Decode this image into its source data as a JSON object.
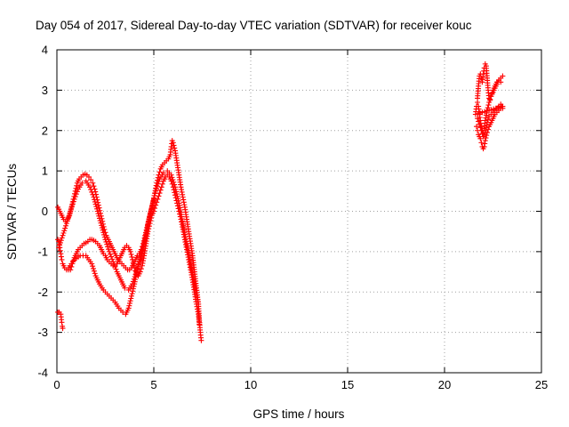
{
  "chart_data": {
    "type": "scatter",
    "title": "Day 054 of 2017, Sidereal Day-to-day VTEC variation (SDTVAR) for receiver kouc",
    "xlabel": "GPS time / hours",
    "ylabel": "SDTVAR / TECUs",
    "xlim": [
      0,
      25
    ],
    "ylim": [
      -4,
      4
    ],
    "xticks": [
      "0",
      "5",
      "10",
      "15",
      "20",
      "25"
    ],
    "yticks": [
      "-4",
      "-3",
      "-2",
      "-1",
      "0",
      "1",
      "2",
      "3",
      "4"
    ],
    "xtick_values": [
      0,
      5,
      10,
      15,
      20,
      25
    ],
    "ytick_values": [
      -4,
      -3,
      -2,
      -1,
      0,
      1,
      2,
      3,
      4
    ],
    "grid": true,
    "marker": "+",
    "color": "#ff0000",
    "series": [
      {
        "points": [
          [
            0.05,
            -2.5
          ],
          [
            0.12,
            -2.5
          ],
          [
            0.2,
            -2.55
          ],
          [
            0.25,
            -2.75
          ],
          [
            0.28,
            -2.85
          ],
          [
            0.3,
            -2.9
          ],
          [
            0.05,
            -0.7
          ],
          [
            0.1,
            -0.75
          ],
          [
            0.15,
            -0.9
          ],
          [
            0.2,
            -1.05
          ],
          [
            0.25,
            -1.2
          ],
          [
            0.3,
            -1.3
          ],
          [
            0.4,
            -1.4
          ],
          [
            0.5,
            -1.45
          ],
          [
            0.6,
            -1.45
          ],
          [
            0.7,
            -1.45
          ],
          [
            0.8,
            -1.3
          ],
          [
            0.9,
            -1.15
          ],
          [
            1.0,
            -1.05
          ],
          [
            1.1,
            -0.95
          ],
          [
            1.2,
            -0.9
          ],
          [
            1.3,
            -0.85
          ],
          [
            1.4,
            -0.8
          ],
          [
            1.5,
            -0.78
          ],
          [
            1.6,
            -0.75
          ],
          [
            1.7,
            -0.7
          ],
          [
            1.8,
            -0.7
          ],
          [
            1.9,
            -0.72
          ],
          [
            2.0,
            -0.75
          ],
          [
            2.1,
            -0.8
          ],
          [
            2.2,
            -0.85
          ],
          [
            2.3,
            -0.95
          ],
          [
            2.4,
            -1.05
          ],
          [
            2.5,
            -1.1
          ],
          [
            2.6,
            -1.2
          ],
          [
            2.7,
            -1.25
          ],
          [
            2.8,
            -1.3
          ],
          [
            2.9,
            -1.35
          ],
          [
            3.0,
            -1.35
          ],
          [
            3.1,
            -1.3
          ],
          [
            3.2,
            -1.2
          ],
          [
            3.3,
            -1.1
          ],
          [
            3.4,
            -1.0
          ],
          [
            3.5,
            -0.9
          ],
          [
            3.6,
            -0.85
          ],
          [
            3.7,
            -0.9
          ],
          [
            3.8,
            -1.0
          ],
          [
            3.9,
            -1.2
          ],
          [
            4.0,
            -1.4
          ],
          [
            4.1,
            -1.55
          ],
          [
            4.2,
            -1.6
          ],
          [
            4.3,
            -1.5
          ],
          [
            4.4,
            -1.35
          ],
          [
            4.5,
            -1.1
          ],
          [
            4.6,
            -0.8
          ],
          [
            4.7,
            -0.5
          ],
          [
            4.8,
            -0.3
          ],
          [
            4.9,
            -0.1
          ],
          [
            5.0,
            0.0
          ],
          [
            5.1,
            0.15
          ],
          [
            5.2,
            0.3
          ],
          [
            5.3,
            0.45
          ],
          [
            5.4,
            0.6
          ],
          [
            5.5,
            0.75
          ],
          [
            5.6,
            0.85
          ],
          [
            5.7,
            0.9
          ],
          [
            5.8,
            0.85
          ],
          [
            5.9,
            0.75
          ],
          [
            6.0,
            0.6
          ],
          [
            6.1,
            0.4
          ],
          [
            6.2,
            0.2
          ],
          [
            6.3,
            0.0
          ],
          [
            6.4,
            -0.2
          ],
          [
            6.5,
            -0.45
          ],
          [
            6.6,
            -0.7
          ],
          [
            6.7,
            -0.95
          ],
          [
            6.8,
            -1.2
          ],
          [
            6.9,
            -1.45
          ],
          [
            7.0,
            -1.7
          ],
          [
            7.1,
            -2.0
          ],
          [
            7.2,
            -2.3
          ],
          [
            7.3,
            -2.55
          ],
          [
            7.35,
            -2.8
          ],
          [
            0.05,
            0.1
          ],
          [
            0.15,
            0.0
          ],
          [
            0.25,
            -0.1
          ],
          [
            0.35,
            -0.2
          ],
          [
            0.45,
            -0.25
          ],
          [
            0.55,
            -0.2
          ],
          [
            0.65,
            -0.1
          ],
          [
            0.75,
            0.1
          ],
          [
            0.85,
            0.3
          ],
          [
            0.95,
            0.5
          ],
          [
            1.05,
            0.7
          ],
          [
            1.15,
            0.8
          ],
          [
            1.25,
            0.85
          ],
          [
            1.35,
            0.9
          ],
          [
            1.45,
            0.92
          ],
          [
            1.55,
            0.9
          ],
          [
            1.65,
            0.85
          ],
          [
            1.75,
            0.78
          ],
          [
            1.85,
            0.7
          ],
          [
            1.95,
            0.55
          ],
          [
            2.05,
            0.35
          ],
          [
            2.15,
            0.15
          ],
          [
            2.25,
            -0.05
          ],
          [
            2.35,
            -0.25
          ],
          [
            2.45,
            -0.45
          ],
          [
            2.55,
            -0.6
          ],
          [
            2.65,
            -0.7
          ],
          [
            2.75,
            -0.8
          ],
          [
            2.85,
            -0.9
          ],
          [
            2.95,
            -1.0
          ],
          [
            3.05,
            -1.1
          ],
          [
            3.15,
            -1.2
          ],
          [
            3.25,
            -1.25
          ],
          [
            3.35,
            -1.3
          ],
          [
            3.45,
            -1.35
          ],
          [
            3.55,
            -1.4
          ],
          [
            3.65,
            -1.45
          ],
          [
            3.75,
            -1.45
          ],
          [
            3.85,
            -1.4
          ],
          [
            3.95,
            -1.3
          ],
          [
            4.05,
            -1.2
          ],
          [
            4.15,
            -1.1
          ],
          [
            4.25,
            -1.05
          ],
          [
            4.35,
            -0.95
          ],
          [
            4.45,
            -0.8
          ],
          [
            4.55,
            -0.6
          ],
          [
            4.65,
            -0.4
          ],
          [
            4.75,
            -0.2
          ],
          [
            4.85,
            0.0
          ],
          [
            4.95,
            0.2
          ],
          [
            5.05,
            0.45
          ],
          [
            5.15,
            0.7
          ],
          [
            5.25,
            0.9
          ],
          [
            5.35,
            1.05
          ],
          [
            5.45,
            1.15
          ],
          [
            5.55,
            1.2
          ],
          [
            5.65,
            1.25
          ],
          [
            5.75,
            1.3
          ],
          [
            5.85,
            1.4
          ],
          [
            5.9,
            1.6
          ],
          [
            5.95,
            1.75
          ],
          [
            6.0,
            1.7
          ],
          [
            6.1,
            1.5
          ],
          [
            6.2,
            1.2
          ],
          [
            6.3,
            0.9
          ],
          [
            6.4,
            0.6
          ],
          [
            6.5,
            0.35
          ],
          [
            6.6,
            0.1
          ],
          [
            6.7,
            -0.2
          ],
          [
            6.8,
            -0.5
          ],
          [
            6.9,
            -0.8
          ],
          [
            7.0,
            -1.1
          ],
          [
            7.1,
            -1.5
          ],
          [
            7.2,
            -1.9
          ],
          [
            7.3,
            -2.3
          ],
          [
            7.35,
            -2.7
          ],
          [
            7.4,
            -3.0
          ],
          [
            7.45,
            -3.2
          ],
          [
            0.1,
            -0.9
          ],
          [
            0.3,
            -0.6
          ],
          [
            0.5,
            -0.3
          ],
          [
            0.7,
            0.0
          ],
          [
            0.9,
            0.3
          ],
          [
            1.1,
            0.55
          ],
          [
            1.3,
            0.7
          ],
          [
            1.5,
            0.75
          ],
          [
            1.7,
            0.6
          ],
          [
            1.9,
            0.35
          ],
          [
            2.1,
            0.0
          ],
          [
            2.3,
            -0.35
          ],
          [
            2.5,
            -0.7
          ],
          [
            2.7,
            -1.0
          ],
          [
            2.9,
            -1.25
          ],
          [
            3.1,
            -1.5
          ],
          [
            3.3,
            -1.7
          ],
          [
            3.5,
            -1.9
          ],
          [
            3.7,
            -1.95
          ],
          [
            3.9,
            -1.8
          ],
          [
            4.1,
            -1.5
          ],
          [
            4.3,
            -1.2
          ],
          [
            4.5,
            -0.8
          ],
          [
            4.7,
            -0.3
          ],
          [
            4.9,
            0.1
          ],
          [
            5.1,
            0.5
          ],
          [
            5.3,
            0.8
          ],
          [
            5.5,
            0.95
          ],
          [
            5.7,
            1.0
          ],
          [
            5.9,
            0.9
          ],
          [
            6.1,
            0.6
          ],
          [
            6.3,
            0.2
          ],
          [
            6.5,
            -0.3
          ],
          [
            6.7,
            -0.8
          ],
          [
            6.9,
            -1.3
          ],
          [
            7.1,
            -1.8
          ],
          [
            7.3,
            -2.3
          ],
          [
            0.6,
            -1.4
          ],
          [
            0.9,
            -1.2
          ],
          [
            1.2,
            -1.1
          ],
          [
            1.5,
            -1.1
          ],
          [
            1.8,
            -1.3
          ],
          [
            2.0,
            -1.6
          ],
          [
            2.2,
            -1.8
          ],
          [
            2.4,
            -1.95
          ],
          [
            2.6,
            -2.05
          ],
          [
            2.8,
            -2.15
          ],
          [
            3.0,
            -2.25
          ],
          [
            3.2,
            -2.4
          ],
          [
            3.4,
            -2.5
          ],
          [
            3.55,
            -2.55
          ],
          [
            3.7,
            -2.4
          ],
          [
            3.85,
            -2.1
          ],
          [
            4.0,
            -1.8
          ],
          [
            4.2,
            -1.3
          ],
          [
            4.4,
            -1.0
          ],
          [
            4.6,
            -0.6
          ],
          [
            4.8,
            -0.1
          ],
          [
            5.0,
            0.3
          ],
          [
            21.7,
            2.8
          ],
          [
            21.75,
            3.1
          ],
          [
            21.8,
            3.35
          ],
          [
            21.85,
            3.4
          ],
          [
            21.9,
            3.3
          ],
          [
            21.95,
            3.2
          ],
          [
            22.0,
            3.4
          ],
          [
            22.05,
            3.55
          ],
          [
            22.1,
            3.65
          ],
          [
            22.15,
            3.6
          ],
          [
            22.2,
            3.3
          ],
          [
            22.25,
            3.0
          ],
          [
            22.3,
            2.8
          ],
          [
            22.35,
            2.75
          ],
          [
            22.4,
            2.85
          ],
          [
            22.5,
            2.95
          ],
          [
            22.6,
            3.05
          ],
          [
            22.7,
            3.15
          ],
          [
            22.8,
            3.25
          ],
          [
            22.9,
            3.3
          ],
          [
            23.0,
            3.35
          ],
          [
            21.65,
            2.1
          ],
          [
            21.7,
            2.0
          ],
          [
            21.75,
            1.9
          ],
          [
            21.8,
            1.85
          ],
          [
            21.85,
            1.8
          ],
          [
            21.9,
            1.7
          ],
          [
            21.95,
            1.6
          ],
          [
            22.0,
            1.55
          ],
          [
            22.05,
            1.6
          ],
          [
            22.1,
            1.75
          ],
          [
            22.2,
            1.95
          ],
          [
            22.3,
            2.1
          ],
          [
            22.4,
            2.2
          ],
          [
            22.5,
            2.3
          ],
          [
            22.6,
            2.4
          ],
          [
            22.7,
            2.45
          ],
          [
            22.8,
            2.5
          ],
          [
            22.9,
            2.55
          ],
          [
            23.0,
            2.6
          ],
          [
            21.6,
            2.4
          ],
          [
            21.65,
            2.6
          ],
          [
            21.7,
            2.7
          ],
          [
            21.75,
            2.6
          ],
          [
            21.8,
            2.4
          ],
          [
            21.85,
            2.25
          ],
          [
            21.9,
            2.1
          ],
          [
            21.95,
            2.0
          ],
          [
            22.0,
            1.95
          ],
          [
            22.05,
            2.05
          ],
          [
            22.1,
            2.25
          ],
          [
            22.2,
            2.5
          ],
          [
            22.3,
            2.7
          ],
          [
            22.4,
            2.85
          ],
          [
            22.5,
            3.0
          ],
          [
            22.6,
            3.1
          ],
          [
            22.7,
            3.2
          ],
          [
            22.8,
            3.25
          ],
          [
            22.9,
            3.2
          ],
          [
            21.7,
            2.3
          ],
          [
            21.8,
            2.15
          ],
          [
            21.9,
            2.0
          ],
          [
            22.0,
            1.85
          ],
          [
            22.1,
            1.95
          ],
          [
            22.2,
            2.2
          ],
          [
            22.3,
            2.35
          ],
          [
            22.4,
            2.4
          ],
          [
            22.5,
            2.45
          ],
          [
            22.6,
            2.5
          ],
          [
            22.7,
            2.55
          ],
          [
            22.8,
            2.6
          ],
          [
            22.9,
            2.65
          ],
          [
            23.0,
            2.55
          ]
        ]
      }
    ]
  }
}
